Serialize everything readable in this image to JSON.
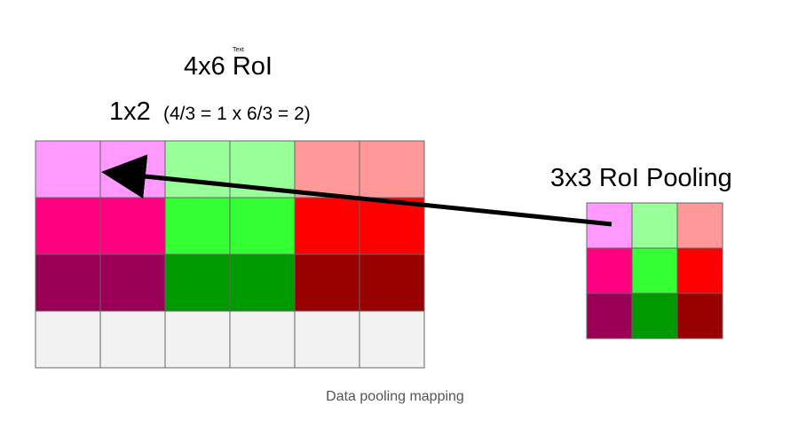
{
  "diagram": {
    "title": "4x6 RoI",
    "tiny_label": "Text",
    "formula_main": "1x2",
    "formula_detail": "(4/3 = 1 x 6/3 = 2)",
    "pool_title": "3x3 RoI Pooling",
    "caption": "Data pooling mapping",
    "roi_grid": {
      "rows": 4,
      "cols": 6,
      "colors": [
        [
          "#ff99ff",
          "#ff99ff",
          "#99ff99",
          "#99ff99",
          "#ff9999",
          "#ff9999"
        ],
        [
          "#ff0080",
          "#ff0080",
          "#33ff33",
          "#33ff33",
          "#ff0000",
          "#ff0000"
        ],
        [
          "#990055",
          "#990055",
          "#009900",
          "#009900",
          "#990000",
          "#990000"
        ],
        [
          "#f2f2f2",
          "#f2f2f2",
          "#f2f2f2",
          "#f2f2f2",
          "#f2f2f2",
          "#f2f2f2"
        ]
      ]
    },
    "pool_grid": {
      "rows": 3,
      "cols": 3,
      "colors": [
        [
          "#ff99ff",
          "#99ff99",
          "#ff9999"
        ],
        [
          "#ff0080",
          "#33ff33",
          "#ff0000"
        ],
        [
          "#990055",
          "#009900",
          "#990000"
        ]
      ]
    },
    "colors": {
      "arrow": "#000000",
      "grid_line": "#666666",
      "caption_text": "#555555"
    }
  }
}
